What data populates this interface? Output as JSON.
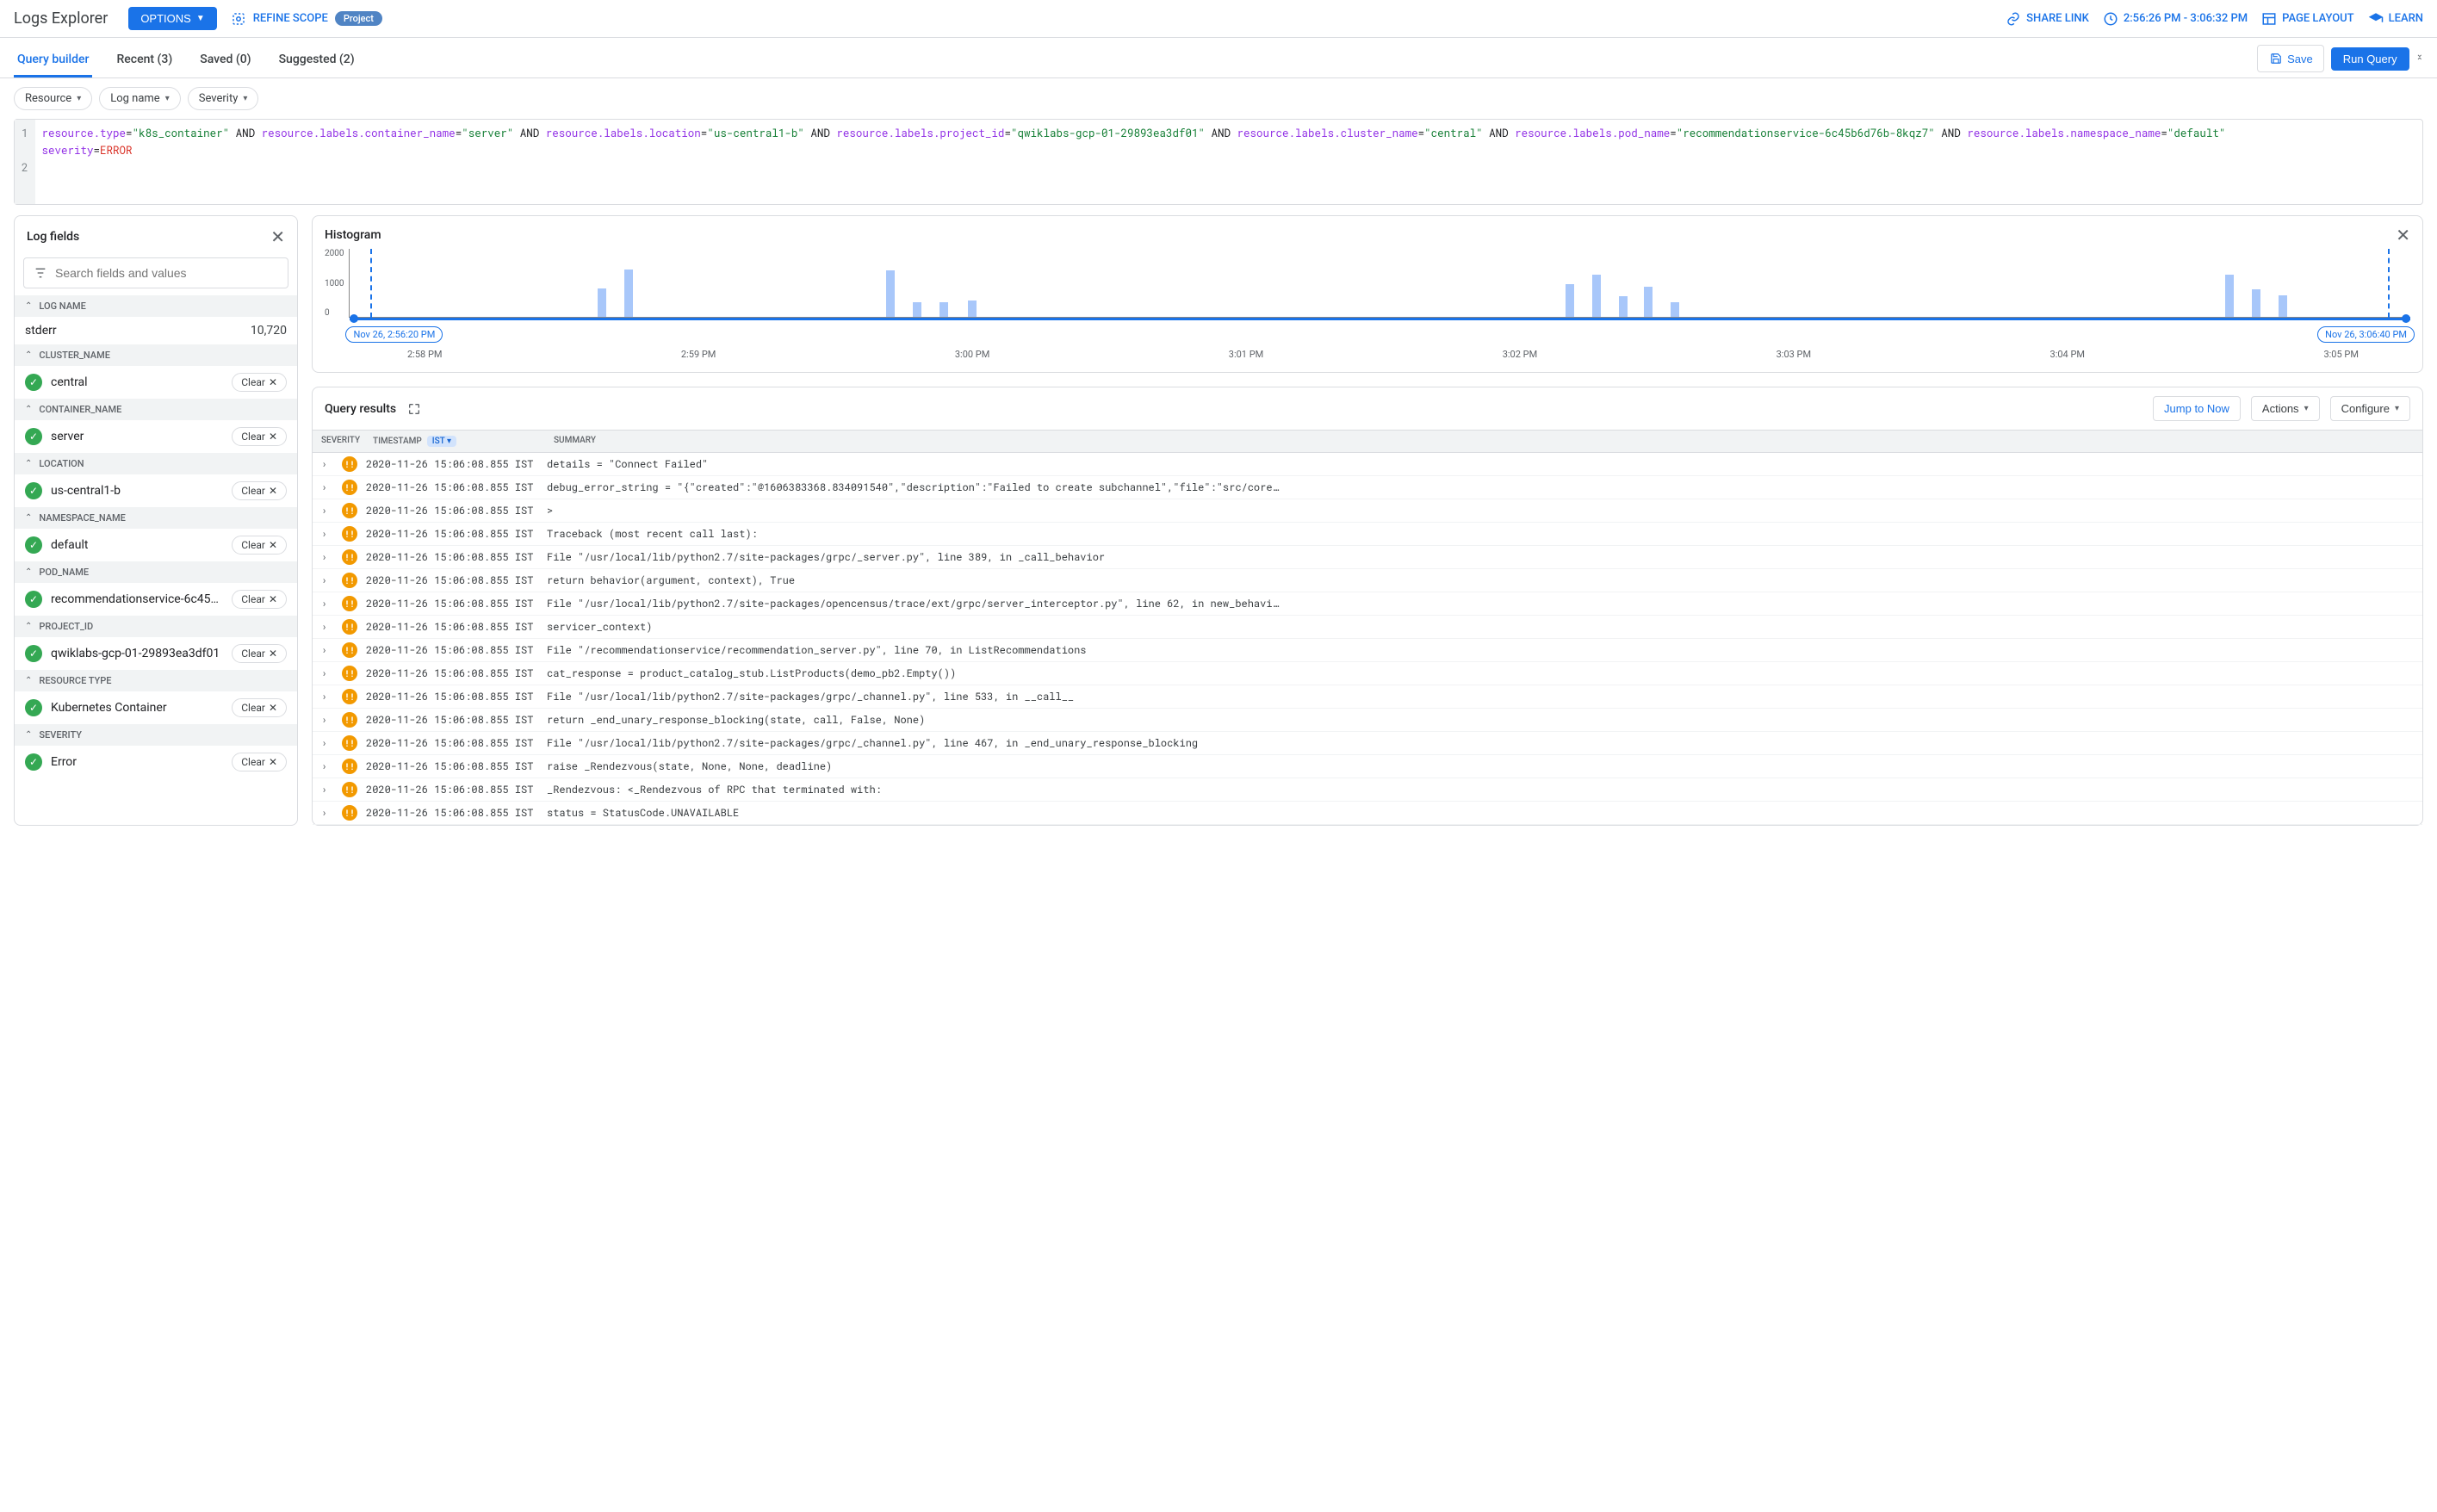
{
  "header": {
    "title": "Logs Explorer",
    "options": "OPTIONS",
    "refine": "REFINE SCOPE",
    "scope_chip": "Project",
    "share": "SHARE LINK",
    "time_range": "2:56:26 PM - 3:06:32 PM",
    "page_layout": "PAGE LAYOUT",
    "learn": "LEARN"
  },
  "tabs": {
    "builder": "Query builder",
    "recent": "Recent (3)",
    "saved": "Saved (0)",
    "suggested": "Suggested (2)",
    "save": "Save",
    "run": "Run Query"
  },
  "filters": {
    "resource": "Resource",
    "logname": "Log name",
    "severity": "Severity"
  },
  "query": {
    "line1": "1",
    "line2": "2",
    "k_resource_type": "resource.type",
    "v_k8s": "\"k8s_container\"",
    "and": "AND",
    "k_container_name": "resource.labels.container_name",
    "v_server": "\"server\"",
    "k_location": "resource.labels.location",
    "v_location": "\"us-central1-b\"",
    "k_project_id": "resource.labels.project_id",
    "v_project": "\"qwiklabs-gcp-01-29893ea3df01\"",
    "k_cluster": "resource.labels.cluster_name",
    "v_cluster": "\"central\"",
    "k_pod": "resource.labels.pod_name",
    "v_pod": "\"recommendationservice-6c45b6d76b-8kqz7\"",
    "k_ns": "resource.labels.namespace_name",
    "v_ns": "\"default\"",
    "k_sev": "severity",
    "v_sev": "ERROR"
  },
  "logfields": {
    "title": "Log fields",
    "search_ph": "Search fields and values",
    "groups": [
      {
        "name": "LOG NAME",
        "items": [
          {
            "label": "stderr",
            "count": "10,720",
            "simple": true
          }
        ]
      },
      {
        "name": "CLUSTER_NAME",
        "items": [
          {
            "label": "central",
            "clear": "Clear"
          }
        ]
      },
      {
        "name": "CONTAINER_NAME",
        "items": [
          {
            "label": "server",
            "clear": "Clear"
          }
        ]
      },
      {
        "name": "LOCATION",
        "items": [
          {
            "label": "us-central1-b",
            "clear": "Clear"
          }
        ]
      },
      {
        "name": "NAMESPACE_NAME",
        "items": [
          {
            "label": "default",
            "clear": "Clear"
          }
        ]
      },
      {
        "name": "POD_NAME",
        "items": [
          {
            "label": "recommendationservice-6c45b...",
            "clear": "Clear"
          }
        ]
      },
      {
        "name": "PROJECT_ID",
        "items": [
          {
            "label": "qwiklabs-gcp-01-29893ea3df01",
            "clear": "Clear"
          }
        ]
      },
      {
        "name": "RESOURCE TYPE",
        "items": [
          {
            "label": "Kubernetes Container",
            "clear": "Clear"
          }
        ]
      },
      {
        "name": "SEVERITY",
        "items": [
          {
            "label": "Error",
            "clear": "Clear"
          }
        ]
      }
    ]
  },
  "histogram": {
    "title": "Histogram",
    "y": {
      "t0": "2000",
      "t1": "1000",
      "t2": "0"
    },
    "start_chip": "Nov 26, 2:56:20 PM",
    "end_chip": "Nov 26, 3:06:40 PM",
    "xlabels": [
      "2:58 PM",
      "2:59 PM",
      "3:00 PM",
      "3:01 PM",
      "3:02 PM",
      "3:03 PM",
      "3:04 PM",
      "3:05 PM"
    ],
    "bars": [
      {
        "left_pct": 12,
        "h_pct": 42
      },
      {
        "left_pct": 13.3,
        "h_pct": 70
      },
      {
        "left_pct": 26,
        "h_pct": 68
      },
      {
        "left_pct": 27.3,
        "h_pct": 22
      },
      {
        "left_pct": 28.6,
        "h_pct": 22
      },
      {
        "left_pct": 30,
        "h_pct": 24
      },
      {
        "left_pct": 59,
        "h_pct": 48
      },
      {
        "left_pct": 60.3,
        "h_pct": 62
      },
      {
        "left_pct": 61.6,
        "h_pct": 30
      },
      {
        "left_pct": 62.8,
        "h_pct": 44
      },
      {
        "left_pct": 64.1,
        "h_pct": 22
      },
      {
        "left_pct": 91,
        "h_pct": 62
      },
      {
        "left_pct": 92.3,
        "h_pct": 40
      },
      {
        "left_pct": 93.6,
        "h_pct": 32
      }
    ]
  },
  "results": {
    "title": "Query results",
    "jump": "Jump to Now",
    "actions": "Actions",
    "configure": "Configure",
    "hdr_sev": "SEVERITY",
    "hdr_ts": "TIMESTAMP",
    "hdr_ist": "IST",
    "hdr_sum": "SUMMARY",
    "rows": [
      {
        "ts": "2020-11-26 15:06:08.855 IST",
        "msg": "details = \"Connect Failed\""
      },
      {
        "ts": "2020-11-26 15:06:08.855 IST",
        "msg": "debug_error_string = \"{\"created\":\"@1606383368.834091540\",\"description\":\"Failed to create subchannel\",\"file\":\"src/core…"
      },
      {
        "ts": "2020-11-26 15:06:08.855 IST",
        "msg": ">"
      },
      {
        "ts": "2020-11-26 15:06:08.855 IST",
        "msg": "Traceback (most recent call last):"
      },
      {
        "ts": "2020-11-26 15:06:08.855 IST",
        "msg": "File \"/usr/local/lib/python2.7/site-packages/grpc/_server.py\", line 389, in _call_behavior"
      },
      {
        "ts": "2020-11-26 15:06:08.855 IST",
        "msg": "return behavior(argument, context), True"
      },
      {
        "ts": "2020-11-26 15:06:08.855 IST",
        "msg": "File \"/usr/local/lib/python2.7/site-packages/opencensus/trace/ext/grpc/server_interceptor.py\", line 62, in new_behavi…"
      },
      {
        "ts": "2020-11-26 15:06:08.855 IST",
        "msg": "servicer_context)"
      },
      {
        "ts": "2020-11-26 15:06:08.855 IST",
        "msg": "File \"/recommendationservice/recommendation_server.py\", line 70, in ListRecommendations"
      },
      {
        "ts": "2020-11-26 15:06:08.855 IST",
        "msg": "cat_response = product_catalog_stub.ListProducts(demo_pb2.Empty())"
      },
      {
        "ts": "2020-11-26 15:06:08.855 IST",
        "msg": "File \"/usr/local/lib/python2.7/site-packages/grpc/_channel.py\", line 533, in __call__"
      },
      {
        "ts": "2020-11-26 15:06:08.855 IST",
        "msg": "return _end_unary_response_blocking(state, call, False, None)"
      },
      {
        "ts": "2020-11-26 15:06:08.855 IST",
        "msg": "File \"/usr/local/lib/python2.7/site-packages/grpc/_channel.py\", line 467, in _end_unary_response_blocking"
      },
      {
        "ts": "2020-11-26 15:06:08.855 IST",
        "msg": "raise _Rendezvous(state, None, None, deadline)"
      },
      {
        "ts": "2020-11-26 15:06:08.855 IST",
        "msg": "_Rendezvous: <_Rendezvous of RPC that terminated with:"
      },
      {
        "ts": "2020-11-26 15:06:08.855 IST",
        "msg": "status = StatusCode.UNAVAILABLE"
      }
    ]
  }
}
